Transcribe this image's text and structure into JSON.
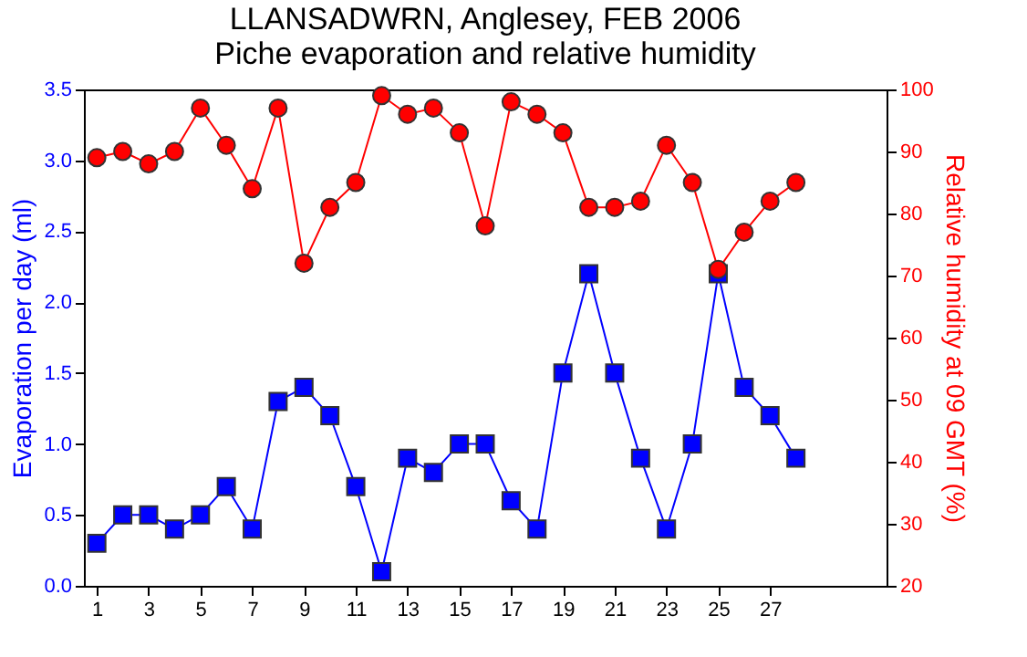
{
  "chart_data": {
    "type": "line",
    "title": [
      "LLANSADWRN, Anglesey, FEB 2006",
      "Piche evaporation and relative humidity"
    ],
    "x": [
      1,
      2,
      3,
      4,
      5,
      6,
      7,
      8,
      9,
      10,
      11,
      12,
      13,
      14,
      15,
      16,
      17,
      18,
      19,
      20,
      21,
      22,
      23,
      24,
      25,
      26,
      27,
      28
    ],
    "xlim": [
      0.5,
      31.5
    ],
    "xticks": [
      1,
      3,
      5,
      7,
      9,
      11,
      13,
      15,
      17,
      19,
      21,
      23,
      25,
      27
    ],
    "ylabel": "Evaporation per day (ml)",
    "y2label": "Relative humidity at 09 GMT (%)",
    "ylim": [
      0,
      3.5
    ],
    "yticks": [
      {
        "value": 0,
        "label": "0.0"
      },
      0.5,
      {
        "value": 1,
        "label": "1.0"
      },
      1.5,
      {
        "value": 2,
        "label": "2.0"
      },
      2.5,
      {
        "value": 3,
        "label": "3.0"
      },
      3.5
    ],
    "y2lim": [
      20,
      100
    ],
    "y2ticks": [
      20,
      30,
      40,
      50,
      60,
      70,
      80,
      90,
      100
    ],
    "grid": false,
    "legend": false,
    "series": [
      {
        "color": "#0000ff",
        "marker": "square",
        "values": [
          0.3,
          0.5,
          0.5,
          0.4,
          0.5,
          0.7,
          0.4,
          1.3,
          1.4,
          1.2,
          0.7,
          0.1,
          0.9,
          0.8,
          1.0,
          1.0,
          0.6,
          0.4,
          1.5,
          2.2,
          1.5,
          0.9,
          0.4,
          1.0,
          2.2,
          1.4,
          1.2,
          0.9
        ]
      },
      {
        "color": "#ff0000",
        "marker": "circle",
        "axis": "y2",
        "values": [
          89,
          90,
          88,
          90,
          97,
          91,
          84,
          97,
          72,
          81,
          85,
          99,
          96,
          97,
          93,
          78,
          98,
          96,
          93,
          81,
          81,
          82,
          91,
          85,
          71,
          77,
          82,
          85
        ]
      }
    ]
  }
}
